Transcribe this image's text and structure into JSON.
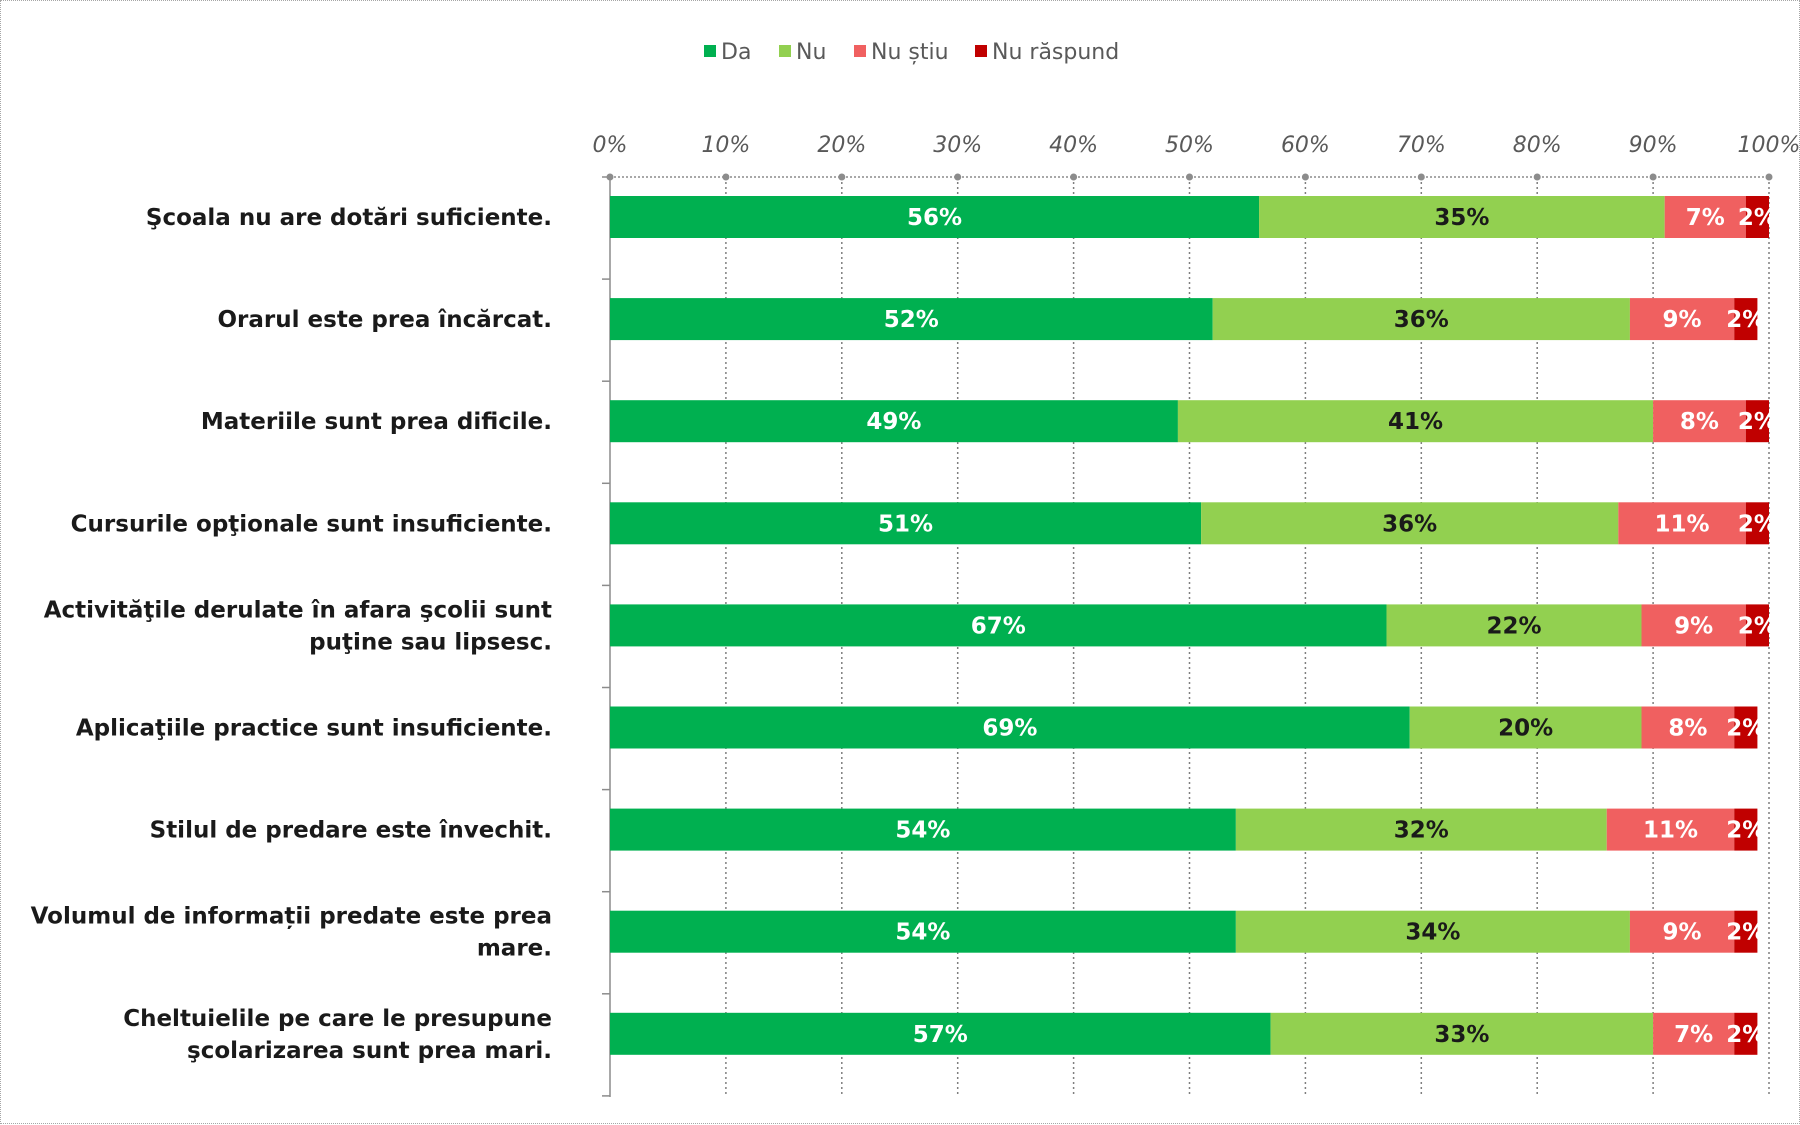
{
  "chart_data": {
    "type": "bar",
    "orientation": "horizontal",
    "stacked": "percent",
    "legend_position": "top",
    "grid": true,
    "xlim": [
      0,
      100
    ],
    "x_ticks": [
      "0%",
      "10%",
      "20%",
      "30%",
      "40%",
      "50%",
      "60%",
      "70%",
      "80%",
      "90%",
      "100%"
    ],
    "categories": [
      "Şcoala nu are dotări suficiente.",
      "Orarul este prea încărcat.",
      "Materiile sunt prea dificile.",
      "Cursurile opţionale sunt insuficiente.",
      "Activităţile derulate în afara şcolii sunt puţine sau lipsesc.",
      "Aplicaţiile practice sunt insuficiente.",
      "Stilul de predare este învechit.",
      "Volumul de informații predate este prea mare.",
      "Cheltuielile pe care le presupune şcolarizarea sunt prea mari."
    ],
    "category_lines": [
      [
        "Şcoala nu are dotări suficiente."
      ],
      [
        "Orarul este prea încărcat."
      ],
      [
        "Materiile sunt prea dificile."
      ],
      [
        "Cursurile opţionale sunt insuficiente."
      ],
      [
        "Activităţile derulate în afara şcolii sunt",
        "puţine sau lipsesc."
      ],
      [
        "Aplicaţiile practice sunt insuficiente."
      ],
      [
        "Stilul de predare este învechit."
      ],
      [
        "Volumul de informații predate este prea",
        "mare."
      ],
      [
        "Cheltuielile pe care le presupune",
        "şcolarizarea sunt prea mari."
      ]
    ],
    "series": [
      {
        "name": "Da",
        "color": "#00b050",
        "label_color": "#ffffff",
        "values": [
          56,
          52,
          49,
          51,
          67,
          69,
          54,
          54,
          57
        ]
      },
      {
        "name": "Nu",
        "color": "#92d050",
        "label_color": "#1a1a1a",
        "values": [
          35,
          36,
          41,
          36,
          22,
          20,
          32,
          34,
          33
        ]
      },
      {
        "name": "Nu știu",
        "color": "#f06060",
        "label_color": "#ffffff",
        "values": [
          7,
          9,
          8,
          11,
          9,
          8,
          11,
          9,
          7
        ]
      },
      {
        "name": "Nu răspund",
        "color": "#c00000",
        "label_color": "#ffffff",
        "values": [
          2,
          2,
          2,
          2,
          2,
          2,
          2,
          2,
          2
        ]
      }
    ]
  }
}
